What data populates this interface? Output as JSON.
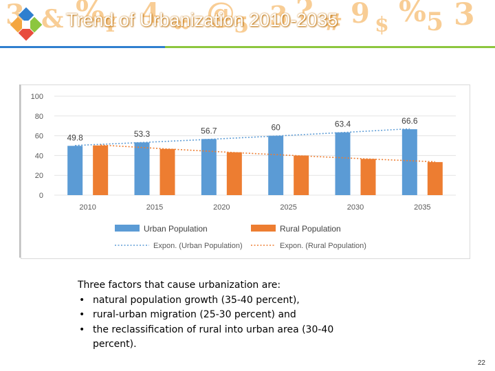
{
  "slide": {
    "title": "Trend of Urbanization 2010-2035",
    "page_number": "22"
  },
  "banner": {
    "deco_glyphs": [
      "3",
      "&",
      "%",
      "¥",
      "4",
      "∞",
      "@",
      "5",
      "3",
      "?",
      "#",
      "9",
      "$",
      "%",
      "5",
      "3"
    ],
    "colors": {
      "stripe_blue": "#2f7fcf",
      "stripe_green": "#8cc63e",
      "deco": "#f4a640"
    }
  },
  "chart_data": {
    "type": "bar",
    "categories": [
      "2010",
      "2015",
      "2020",
      "2025",
      "2030",
      "2035"
    ],
    "series": [
      {
        "name": "Urban Population",
        "color": "#5b9bd5",
        "values": [
          49.8,
          53.3,
          56.7,
          60,
          63.4,
          66.6
        ],
        "data_labels": [
          "49.8",
          "53.3",
          "56.7",
          "60",
          "63.4",
          "66.6"
        ]
      },
      {
        "name": "Rural Population",
        "color": "#ed7d31",
        "values": [
          50.2,
          46.7,
          43.3,
          40,
          36.6,
          33.4
        ]
      }
    ],
    "trendlines": [
      {
        "name": "Expon. (Urban Population)",
        "type": "exponential",
        "series": "Urban Population",
        "color": "#5b9bd5"
      },
      {
        "name": "Expon. (Rural Population)",
        "type": "exponential",
        "series": "Rural Population",
        "color": "#ed7d31"
      }
    ],
    "ylim": [
      0,
      100
    ],
    "yticks": [
      "0",
      "20",
      "40",
      "60",
      "80",
      "100"
    ],
    "grid": true,
    "legend_position": "bottom"
  },
  "notes": {
    "intro": "Three factors that cause urbanization are:",
    "items": [
      "natural population growth (35-40 percent),",
      "rural-urban migration (25-30 percent) and",
      "the reclassification of rural into urban area (30-40 percent)."
    ]
  }
}
